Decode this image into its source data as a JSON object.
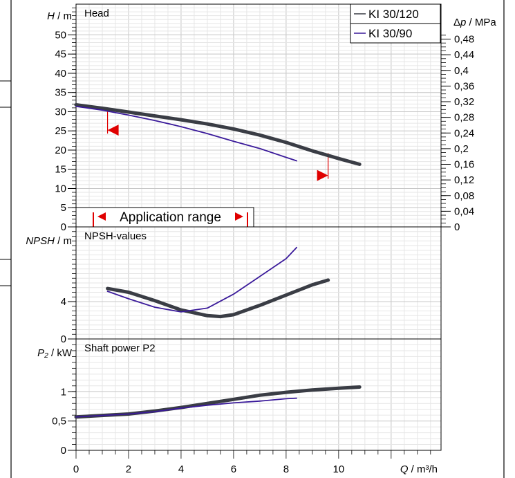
{
  "chart_data": [
    {
      "type": "line",
      "title": "Head",
      "ylabel_var": "H",
      "ylabel_unit": " / m",
      "ylabel2_var": "Δp",
      "ylabel2_unit": " / MPa",
      "xlim": [
        0,
        13.9
      ],
      "ylim": [
        0,
        58
      ],
      "yticks": [
        "0",
        "5",
        "10",
        "15",
        "20",
        "25",
        "30",
        "35",
        "40",
        "45",
        "50"
      ],
      "ytick_values": [
        0,
        5,
        10,
        15,
        20,
        25,
        30,
        35,
        40,
        45,
        50
      ],
      "y2ticks": [
        "0",
        "0,04",
        "0,08",
        "0,12",
        "0,16",
        "0,2",
        "0,24",
        "0,28",
        "0,32",
        "0,36",
        "0,4",
        "0,44",
        "0,48"
      ],
      "y2tick_values": [
        0,
        0.04,
        0.08,
        0.12,
        0.16,
        0.2,
        0.24,
        0.28,
        0.32,
        0.36,
        0.4,
        0.44,
        0.48
      ],
      "legend_position": "top-right",
      "series": [
        {
          "name": "KI 30/120",
          "color": "#3a3d45",
          "x": [
            0,
            1,
            2,
            3,
            4,
            5,
            6,
            7,
            8,
            9,
            10,
            10.8
          ],
          "y": [
            31.8,
            30.9,
            29.9,
            28.9,
            27.9,
            26.8,
            25.5,
            23.9,
            22,
            19.8,
            17.8,
            16.3
          ]
        },
        {
          "name": "KI 30/90",
          "color": "#3a1a9a",
          "x": [
            0,
            1,
            2,
            3,
            4,
            5,
            6,
            7,
            8,
            8.4
          ],
          "y": [
            31.4,
            30.4,
            29.1,
            27.7,
            26.1,
            24.3,
            22.3,
            20.4,
            18.1,
            17.2
          ]
        }
      ],
      "application_range": {
        "label": "Application range",
        "x_min": 1.2,
        "x_max": 9.6,
        "color": "#e00000"
      }
    },
    {
      "type": "line",
      "title": "NPSH-values",
      "ylabel_var": "NPSH",
      "ylabel_unit": " / m",
      "xlim": [
        0,
        13.9
      ],
      "ylim": [
        0,
        12
      ],
      "yticks": [
        "0",
        "4"
      ],
      "ytick_values": [
        0,
        4
      ],
      "series": [
        {
          "color": "#3a3d45",
          "x": [
            1.2,
            2,
            3,
            4,
            5,
            5.5,
            6,
            7,
            8,
            9,
            9.6
          ],
          "y": [
            5.4,
            5,
            4.1,
            3.1,
            2.5,
            2.4,
            2.6,
            3.6,
            4.7,
            5.8,
            6.3
          ]
        },
        {
          "color": "#3a1a9a",
          "x": [
            1.2,
            2,
            3,
            4,
            5,
            6,
            7,
            8,
            8.4
          ],
          "y": [
            5.1,
            4.3,
            3.4,
            2.9,
            3.3,
            4.8,
            6.7,
            8.6,
            9.8
          ]
        }
      ]
    },
    {
      "type": "line",
      "title": "Shaft power P2",
      "ylabel_var": "P₂",
      "ylabel_unit": " / kW",
      "xlabel_var": "Q",
      "xlabel_unit": " / m³/h",
      "xlim": [
        0,
        13.9
      ],
      "ylim": [
        0,
        1.9
      ],
      "yticks": [
        "0",
        "0,5",
        "1"
      ],
      "ytick_values": [
        0,
        0.5,
        1
      ],
      "xticks": [
        "0",
        "2",
        "4",
        "6",
        "8",
        "10"
      ],
      "xtick_values": [
        0,
        2,
        4,
        6,
        8,
        10
      ],
      "series": [
        {
          "color": "#3a3d45",
          "x": [
            0,
            2,
            3,
            4,
            5,
            6,
            7,
            8,
            9,
            10,
            10.8
          ],
          "y": [
            0.57,
            0.62,
            0.67,
            0.73,
            0.8,
            0.87,
            0.94,
            0.99,
            1.03,
            1.06,
            1.08
          ]
        },
        {
          "color": "#3a1a9a",
          "x": [
            0,
            2,
            3,
            4,
            5,
            6,
            7,
            8,
            8.4
          ],
          "y": [
            0.57,
            0.62,
            0.66,
            0.72,
            0.77,
            0.81,
            0.84,
            0.88,
            0.89
          ]
        }
      ]
    }
  ]
}
